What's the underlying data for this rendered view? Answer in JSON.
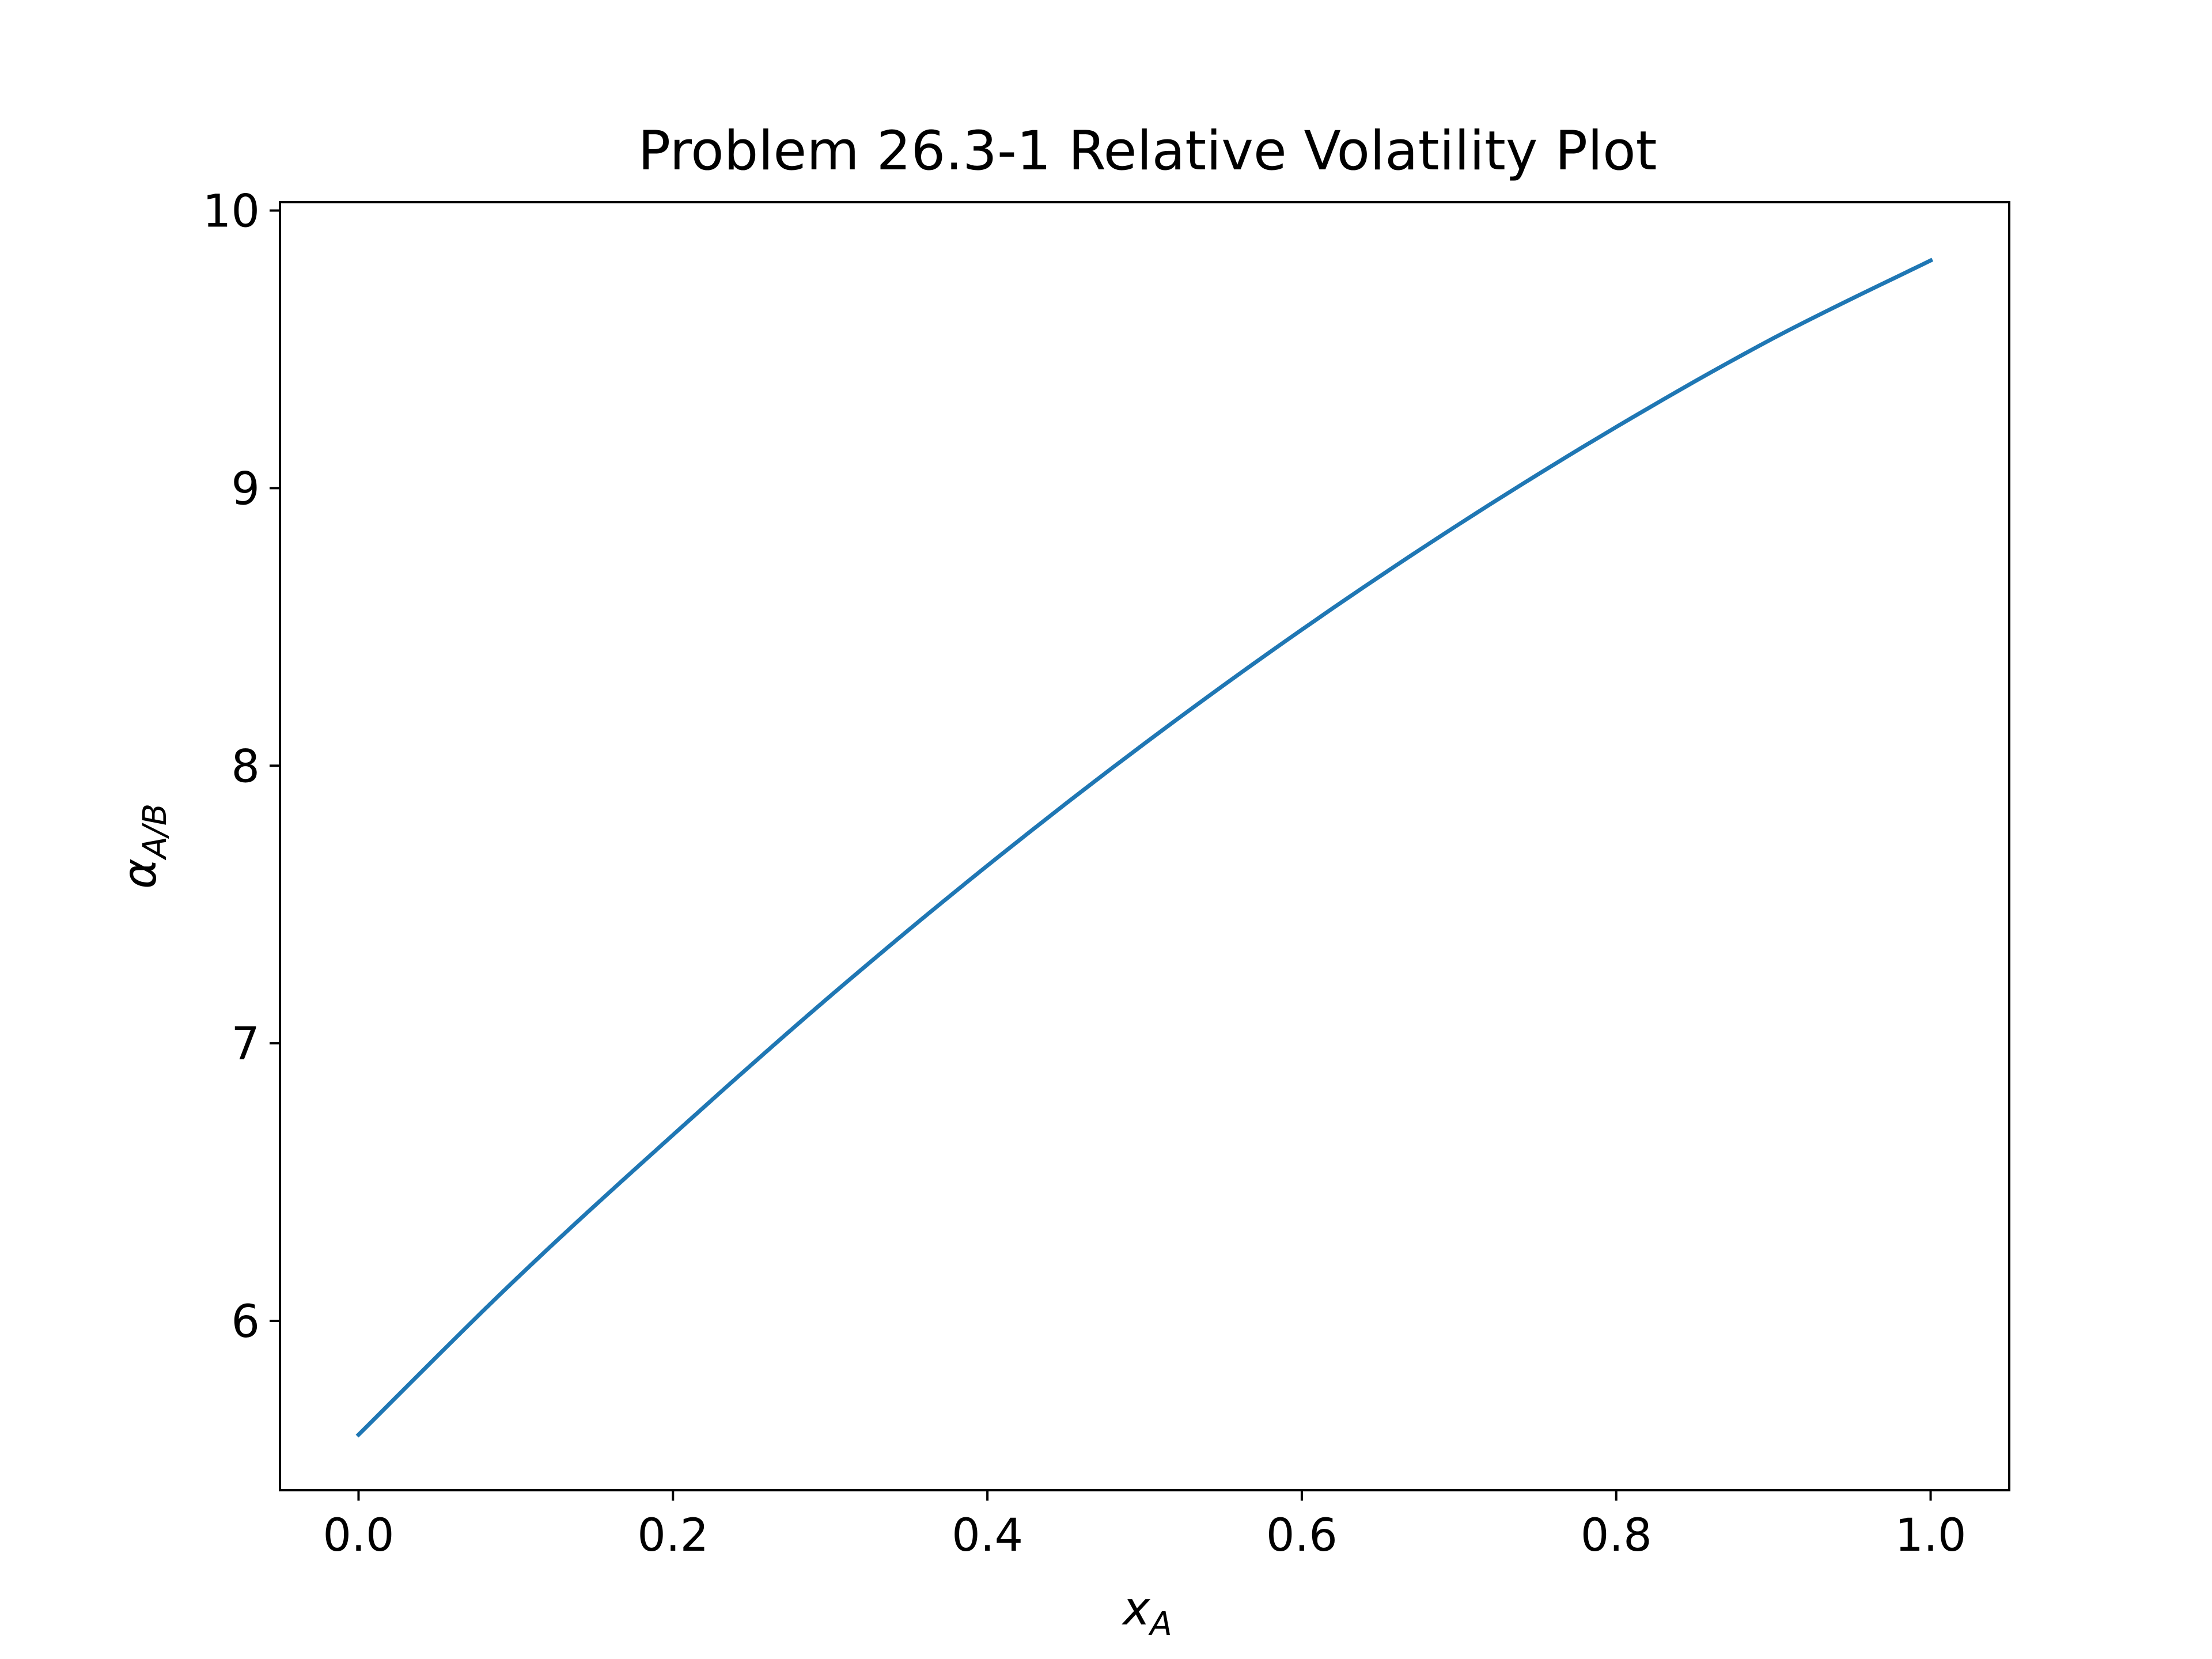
{
  "chart_data": {
    "type": "line",
    "title": "Problem 26.3-1 Relative Volatility Plot",
    "xlabel": {
      "base": "x",
      "sub": "A"
    },
    "ylabel": {
      "base": "α",
      "sub": "A/B"
    },
    "xlim": [
      -0.05,
      1.05
    ],
    "ylim": [
      5.39,
      10.03
    ],
    "xticks": [
      0.0,
      0.2,
      0.4,
      0.6,
      0.8,
      1.0
    ],
    "xtick_labels": [
      "0.0",
      "0.2",
      "0.4",
      "0.6",
      "0.8",
      "1.0"
    ],
    "yticks": [
      6,
      7,
      8,
      9,
      10
    ],
    "ytick_labels": [
      "6",
      "7",
      "8",
      "9",
      "10"
    ],
    "grid": false,
    "series": [
      {
        "color": "#1f77b4",
        "x": [
          0.0,
          0.1,
          0.2,
          0.3,
          0.4,
          0.5,
          0.6,
          0.7,
          0.8,
          0.9,
          1.0
        ],
        "y": [
          5.59,
          6.15,
          6.67,
          7.17,
          7.64,
          8.08,
          8.49,
          8.87,
          9.22,
          9.54,
          9.82
        ]
      }
    ]
  }
}
